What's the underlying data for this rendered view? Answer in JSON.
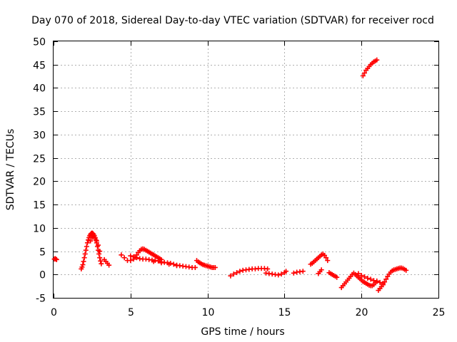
{
  "chart_data": {
    "type": "scatter",
    "title": "Day 070 of 2018, Sidereal Day-to-day VTEC variation (SDTVAR) for receiver rocd",
    "xlabel": "GPS time / hours",
    "ylabel": "SDTVAR / TECUs",
    "xlim": [
      0,
      25
    ],
    "ylim": [
      -5,
      50
    ],
    "xticks": [
      "0",
      "5",
      "10",
      "15",
      "20",
      "25"
    ],
    "yticks": [
      "-5",
      "0",
      "5",
      "10",
      "15",
      "20",
      "25",
      "30",
      "35",
      "40",
      "45",
      "50"
    ],
    "grid": true,
    "marker": "+",
    "color": "#ff0000",
    "series": [
      {
        "name": "SDTVAR",
        "x": [
          0.05,
          0.1,
          0.15,
          0.2,
          1.8,
          1.85,
          1.9,
          1.95,
          2.0,
          2.05,
          2.1,
          2.15,
          2.2,
          2.25,
          2.3,
          2.35,
          2.4,
          2.45,
          2.5,
          2.55,
          2.6,
          2.65,
          2.7,
          2.75,
          2.8,
          2.85,
          2.9,
          2.95,
          3.0,
          3.05,
          3.1,
          2.4,
          2.5,
          2.6,
          2.7,
          2.8,
          2.9,
          3.0,
          3.3,
          3.4,
          3.5,
          3.6,
          4.4,
          4.6,
          4.8,
          5.0,
          5.2,
          5.3,
          5.4,
          5.5,
          5.6,
          5.7,
          5.8,
          5.9,
          6.0,
          6.1,
          6.2,
          6.3,
          6.4,
          6.5,
          6.6,
          6.7,
          6.8,
          6.9,
          7.0,
          5.0,
          5.2,
          5.4,
          5.6,
          5.8,
          6.0,
          6.2,
          6.4,
          6.6,
          6.8,
          7.0,
          7.2,
          7.4,
          7.6,
          7.8,
          8.0,
          8.2,
          8.4,
          8.6,
          8.8,
          9.0,
          9.2,
          6.5,
          7.0,
          7.5,
          8.0,
          9.3,
          9.4,
          9.5,
          9.6,
          9.7,
          9.8,
          9.9,
          10.0,
          10.1,
          10.2,
          10.3,
          10.4,
          10.5,
          11.5,
          11.7,
          11.9,
          12.1,
          12.3,
          12.5,
          12.7,
          12.9,
          13.1,
          13.3,
          13.5,
          13.7,
          13.9,
          13.8,
          14.0,
          14.2,
          14.4,
          14.6,
          14.8,
          15.0,
          15.1,
          15.6,
          15.8,
          16.0,
          16.2,
          16.7,
          16.8,
          16.9,
          17.0,
          17.1,
          17.2,
          17.3,
          17.4,
          17.5,
          17.6,
          17.7,
          17.8,
          17.4,
          17.3,
          17.2,
          17.9,
          18.0,
          18.1,
          18.2,
          18.3,
          18.4,
          18.7,
          18.8,
          18.9,
          19.0,
          19.1,
          19.2,
          19.3,
          19.4,
          19.5,
          19.6,
          19.7,
          19.8,
          19.9,
          20.0,
          20.1,
          20.2,
          20.3,
          20.4,
          20.5,
          20.6,
          20.7,
          20.8,
          20.9,
          21.0,
          21.1,
          21.2,
          21.3,
          21.4,
          21.5,
          21.6,
          21.7,
          21.8,
          21.9,
          22.0,
          22.1,
          22.2,
          22.3,
          22.4,
          22.5,
          22.6,
          22.7,
          22.8,
          22.9,
          19.8,
          20.0,
          20.2,
          20.4,
          20.6,
          20.8,
          21.0,
          21.2,
          21.4,
          20.1,
          20.2,
          20.3,
          20.4,
          20.5,
          20.6,
          20.7,
          20.8,
          20.9,
          21.0
        ],
        "y": [
          3.3,
          3.4,
          3.3,
          3.2,
          1.2,
          1.6,
          2.1,
          2.8,
          3.6,
          4.4,
          5.2,
          6.0,
          6.8,
          7.4,
          7.9,
          8.3,
          8.6,
          8.8,
          8.9,
          8.8,
          8.6,
          8.3,
          7.9,
          7.4,
          6.8,
          6.0,
          5.2,
          4.4,
          3.6,
          2.9,
          2.3,
          7.2,
          7.9,
          8.1,
          7.8,
          7.2,
          6.3,
          5.0,
          3.2,
          2.8,
          2.4,
          2.0,
          4.2,
          3.6,
          3.0,
          3.0,
          3.3,
          3.7,
          4.2,
          4.7,
          5.1,
          5.4,
          5.5,
          5.4,
          5.2,
          5.0,
          4.8,
          4.6,
          4.4,
          4.2,
          4.0,
          3.8,
          3.6,
          3.4,
          3.2,
          4.0,
          3.8,
          3.6,
          3.4,
          3.3,
          3.3,
          3.2,
          3.1,
          3.0,
          2.9,
          2.7,
          2.6,
          2.5,
          2.4,
          2.2,
          2.0,
          1.9,
          1.8,
          1.7,
          1.6,
          1.5,
          1.5,
          2.8,
          2.5,
          2.2,
          1.9,
          3.0,
          2.7,
          2.5,
          2.3,
          2.1,
          2.0,
          1.9,
          1.8,
          1.7,
          1.6,
          1.5,
          1.5,
          1.5,
          -0.3,
          0.1,
          0.4,
          0.7,
          0.9,
          1.0,
          1.1,
          1.2,
          1.2,
          1.3,
          1.3,
          1.3,
          1.2,
          0.3,
          0.2,
          0.1,
          0.0,
          -0.1,
          0.1,
          0.4,
          0.7,
          0.3,
          0.5,
          0.6,
          0.7,
          2.2,
          2.4,
          2.7,
          3.0,
          3.3,
          3.6,
          3.9,
          4.2,
          4.4,
          4.1,
          3.6,
          3.0,
          1.0,
          0.6,
          0.2,
          0.4,
          0.2,
          0.0,
          -0.2,
          -0.4,
          -0.6,
          -2.8,
          -2.4,
          -2.0,
          -1.6,
          -1.2,
          -0.8,
          -0.4,
          0.0,
          0.3,
          0.0,
          -0.3,
          -0.6,
          -0.9,
          -1.2,
          -1.5,
          -1.7,
          -1.9,
          -2.1,
          -2.3,
          -2.4,
          -2.4,
          -2.2,
          -1.8,
          -1.4,
          -3.4,
          -3.0,
          -2.6,
          -2.2,
          -1.6,
          -1.0,
          -0.4,
          0.1,
          0.5,
          0.8,
          1.0,
          1.1,
          1.2,
          1.3,
          1.4,
          1.4,
          1.3,
          1.1,
          0.9,
          0.2,
          -0.2,
          -0.5,
          -0.8,
          -1.0,
          -1.3,
          -1.5,
          -1.7,
          -1.9,
          42.6,
          43.2,
          43.8,
          44.2,
          44.6,
          45.0,
          45.3,
          45.6,
          45.8,
          46.0
        ]
      }
    ]
  }
}
